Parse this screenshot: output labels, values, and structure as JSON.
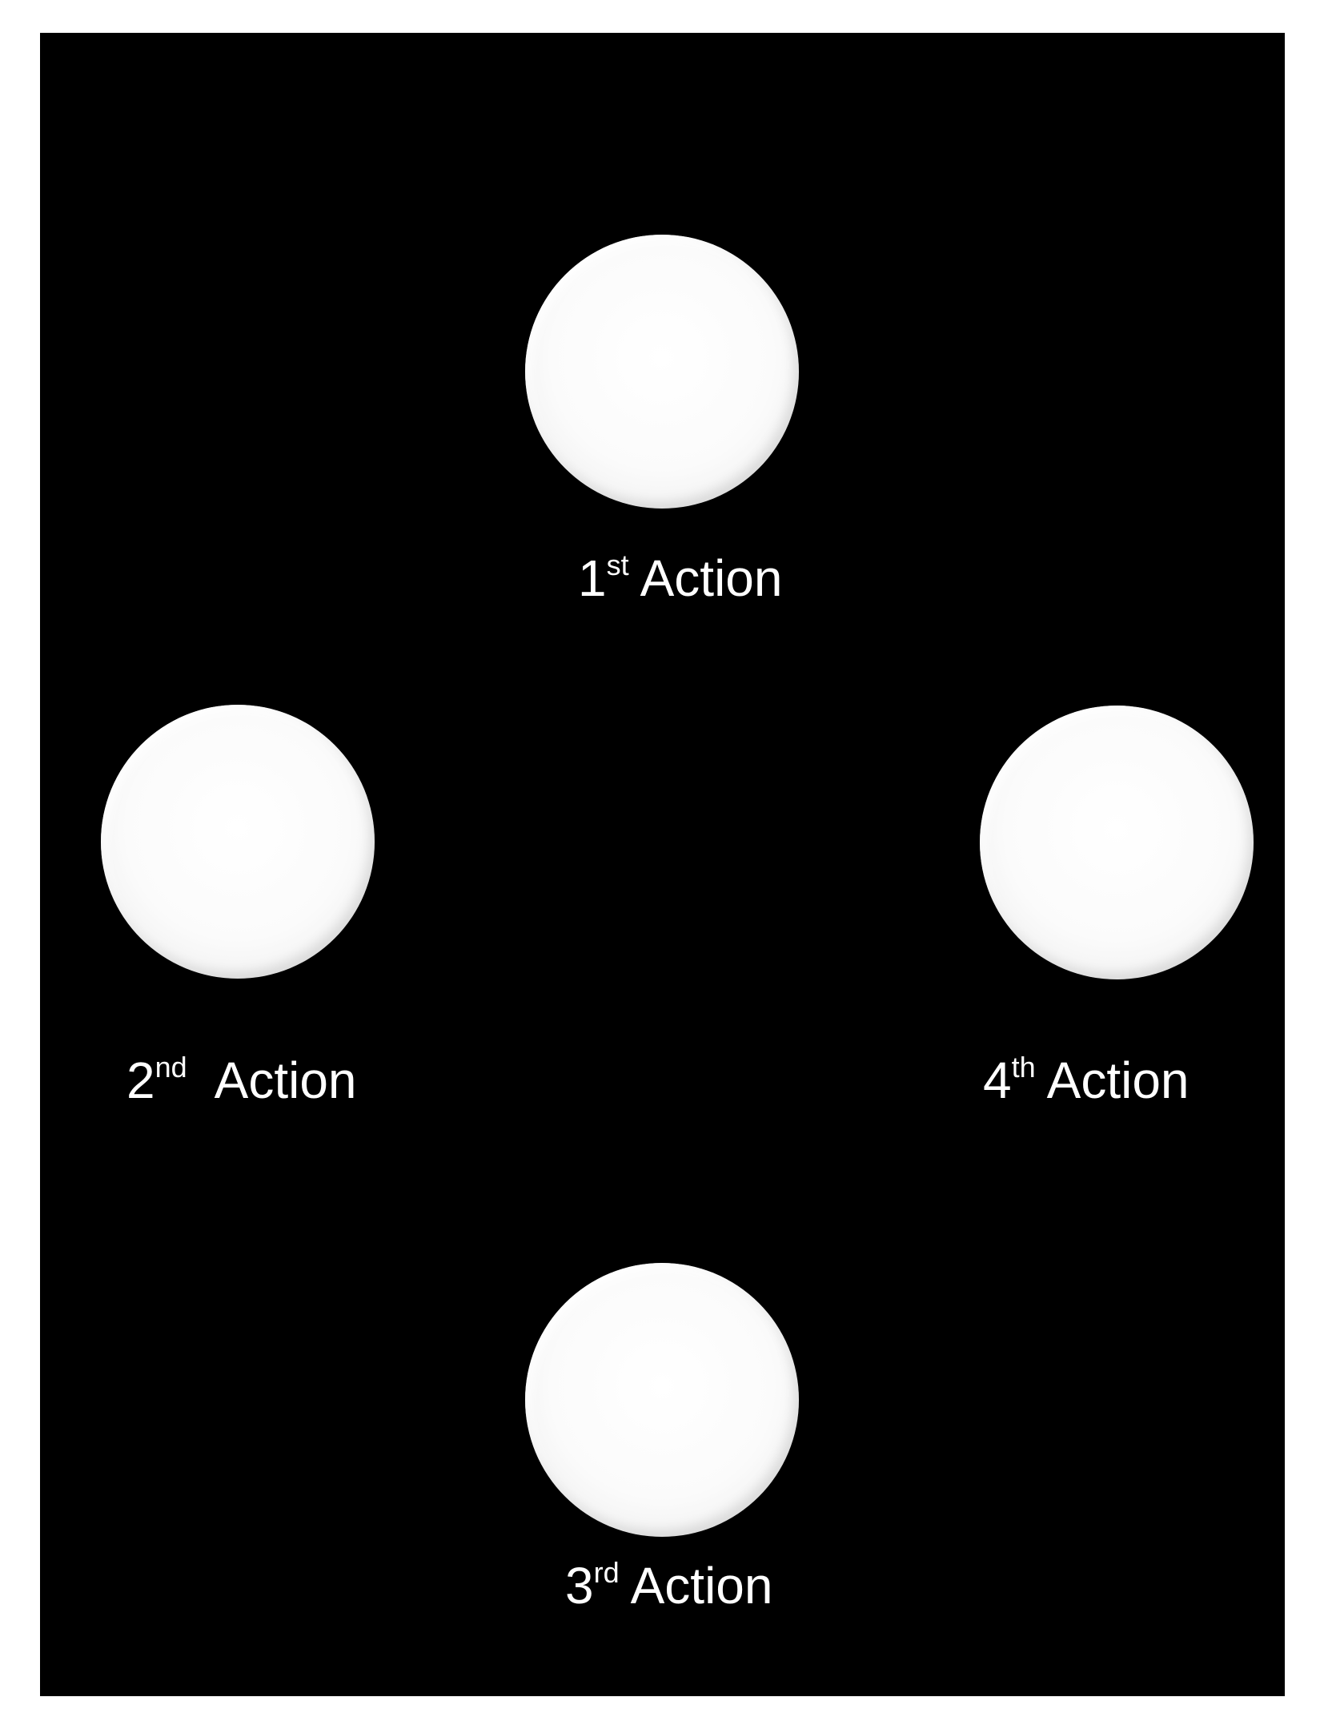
{
  "actions": [
    {
      "number": "1",
      "suffix": "st",
      "word": "Action"
    },
    {
      "number": "2",
      "suffix": "nd",
      "word": "Action"
    },
    {
      "number": "3",
      "suffix": "rd",
      "word": "Action"
    },
    {
      "number": "4",
      "suffix": "th",
      "word": "Action"
    }
  ],
  "colors": {
    "background": "#000000",
    "page": "#ffffff",
    "circle": "#ffffff",
    "text": "#ffffff"
  }
}
